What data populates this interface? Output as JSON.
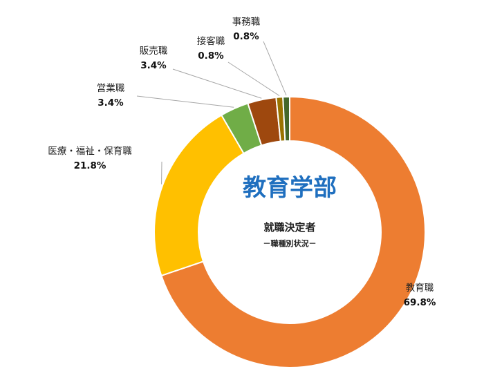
{
  "chart_data": {
    "type": "pie",
    "donut": true,
    "title": "教育学部",
    "subtitle": "就職決定者",
    "note": "－職種別状況－",
    "title_color": "#1F6FBF",
    "slices": [
      {
        "name": "教育職",
        "value": 69.8,
        "label": "69.8%",
        "color": "#ED7D31"
      },
      {
        "name": "医療・福祉・保育職",
        "value": 21.8,
        "label": "21.8%",
        "color": "#FFC000"
      },
      {
        "name": "営業職",
        "value": 3.4,
        "label": "3.4%",
        "color": "#70AD47"
      },
      {
        "name": "販売職",
        "value": 3.4,
        "label": "3.4%",
        "color": "#9E480E"
      },
      {
        "name": "接客職",
        "value": 0.8,
        "label": "0.8%",
        "color": "#997300"
      },
      {
        "name": "事務職",
        "value": 0.8,
        "label": "0.8%",
        "color": "#43682B"
      }
    ]
  }
}
